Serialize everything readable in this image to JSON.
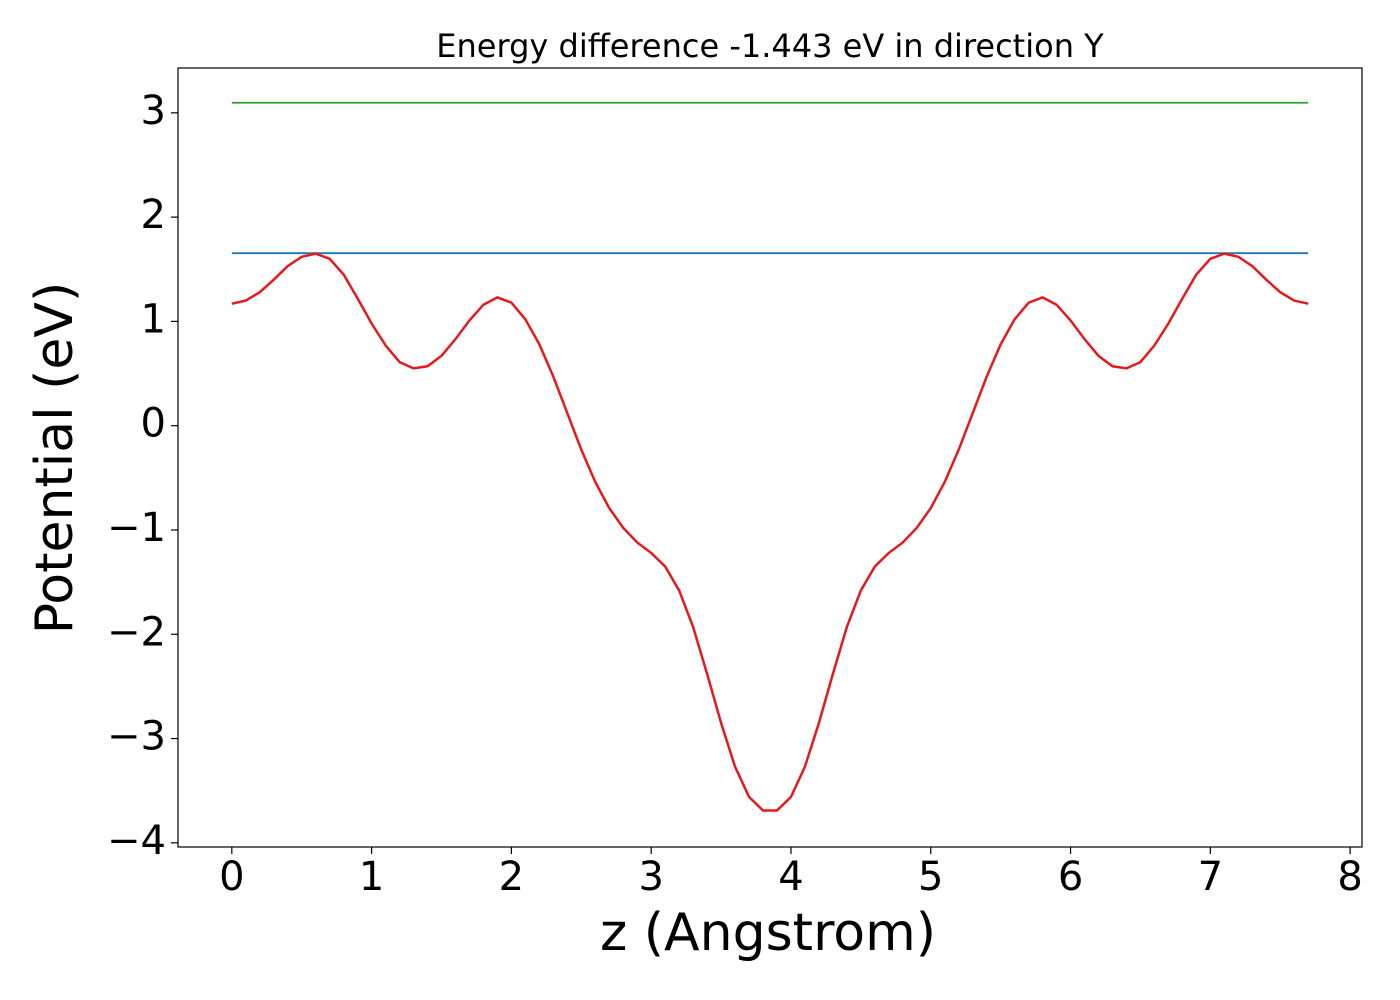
{
  "chart_data": {
    "type": "line",
    "title": "Energy difference -1.443 eV in direction Y",
    "xlabel": "z (Angstrom)",
    "ylabel": "Potential (eV)",
    "xlim": [
      -0.385,
      8.085
    ],
    "ylim": [
      -4.04,
      3.43
    ],
    "xticks": [
      0,
      1,
      2,
      3,
      4,
      5,
      6,
      7,
      8
    ],
    "yticks": [
      {
        "value": -4,
        "label": "−4"
      },
      {
        "value": -3,
        "label": "−3"
      },
      {
        "value": -2,
        "label": "−2"
      },
      {
        "value": -1,
        "label": "−1"
      },
      0,
      1,
      2,
      3
    ],
    "series": [
      {
        "color": "#2ca02c",
        "x": [
          0,
          7.7
        ],
        "values": [
          3.097,
          3.097
        ]
      },
      {
        "color": "#1f77b4",
        "x": [
          0,
          7.7
        ],
        "values": [
          1.654,
          1.654
        ]
      },
      {
        "color": "#e41a1c",
        "x": [
          0,
          0.1,
          0.2,
          0.3,
          0.4,
          0.5,
          0.6,
          0.7,
          0.8,
          0.9,
          1.0,
          1.1,
          1.2,
          1.3,
          1.4,
          1.5,
          1.6,
          1.7,
          1.8,
          1.9,
          2.0,
          2.1,
          2.2,
          2.3,
          2.4,
          2.5,
          2.6,
          2.7,
          2.8,
          2.9,
          3.0,
          3.1,
          3.2,
          3.3,
          3.4,
          3.5,
          3.6,
          3.7,
          3.8,
          3.9,
          4.0,
          4.1,
          4.2,
          4.3,
          4.4,
          4.5,
          4.6,
          4.7,
          4.8,
          4.9,
          5.0,
          5.1,
          5.2,
          5.3,
          5.4,
          5.5,
          5.6,
          5.7,
          5.8,
          5.9,
          6.0,
          6.1,
          6.2,
          6.3,
          6.4,
          6.5,
          6.6,
          6.7,
          6.8,
          6.9,
          7.0,
          7.1,
          7.2,
          7.3,
          7.4,
          7.5,
          7.6,
          7.7
        ],
        "values": [
          1.17,
          1.2,
          1.28,
          1.4,
          1.53,
          1.62,
          1.65,
          1.6,
          1.45,
          1.22,
          0.98,
          0.77,
          0.61,
          0.55,
          0.57,
          0.67,
          0.83,
          1.01,
          1.16,
          1.23,
          1.18,
          1.02,
          0.78,
          0.47,
          0.12,
          -0.23,
          -0.54,
          -0.79,
          -0.98,
          -1.12,
          -1.22,
          -1.35,
          -1.58,
          -1.93,
          -2.38,
          -2.85,
          -3.27,
          -3.56,
          -3.69,
          -3.69,
          -3.56,
          -3.27,
          -2.85,
          -2.38,
          -1.93,
          -1.58,
          -1.35,
          -1.22,
          -1.12,
          -0.98,
          -0.79,
          -0.54,
          -0.23,
          0.12,
          0.47,
          0.78,
          1.02,
          1.18,
          1.23,
          1.16,
          1.01,
          0.83,
          0.67,
          0.57,
          0.55,
          0.61,
          0.77,
          0.98,
          1.22,
          1.45,
          1.6,
          1.65,
          1.62,
          1.53,
          1.4,
          1.28,
          1.2,
          1.17
        ]
      }
    ]
  }
}
